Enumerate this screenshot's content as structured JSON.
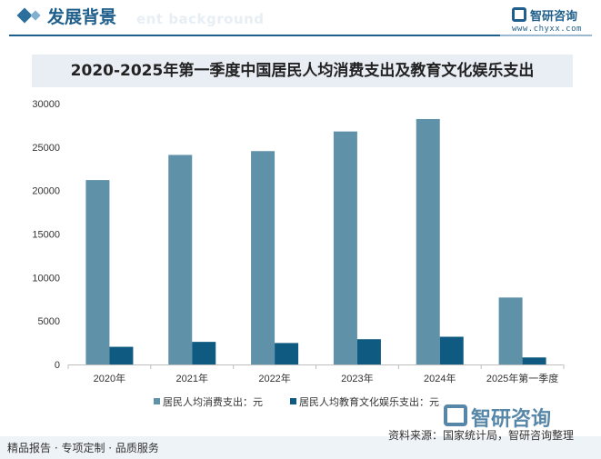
{
  "header": {
    "title": "发展背景",
    "subtitle": "ent background",
    "brand": "智研咨询",
    "url": "www.chyxx.com"
  },
  "footer": {
    "left": "精品报告 · 专项定制 · 品质服务",
    "source": "资料来源：国家统计局，智研咨询整理",
    "watermark": "智研咨询"
  },
  "colors": {
    "series1": "#5f91a8",
    "series2": "#0e5a80"
  },
  "chart_data": {
    "type": "bar",
    "title": "2020-2025年第一季度中国居民人均消费支出及教育文化娱乐支出",
    "categories": [
      "2020年",
      "2021年",
      "2022年",
      "2023年",
      "2024年",
      "2025年第一季度"
    ],
    "series": [
      {
        "name": "居民人均消费支出：元",
        "values": [
          21210,
          24100,
          24538,
          26796,
          28227,
          7700
        ]
      },
      {
        "name": "居民人均教育文化娱乐支出：元",
        "values": [
          2032,
          2599,
          2469,
          2904,
          3189,
          810
        ]
      }
    ],
    "ylim": [
      0,
      30000
    ],
    "yticks": [
      "0",
      "5000",
      "10000",
      "15000",
      "20000",
      "25000",
      "30000"
    ],
    "legend": "bottom"
  }
}
